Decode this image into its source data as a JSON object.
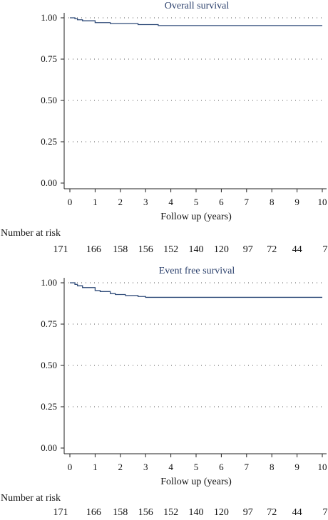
{
  "colors": {
    "curve": "#2e4a78",
    "axis": "#222222",
    "grid": "#555555",
    "title": "#2a3f6b"
  },
  "chart_data": [
    {
      "type": "line",
      "title": "Overall survival",
      "xlabel": "Follow up (years)",
      "ylabel": "",
      "xlim": [
        0,
        10
      ],
      "ylim": [
        0,
        1
      ],
      "x_ticks": [
        "0",
        "1",
        "2",
        "3",
        "4",
        "5",
        "6",
        "7",
        "8",
        "9",
        "10"
      ],
      "y_ticks": [
        "0.00",
        "0.25",
        "0.50",
        "0.75",
        "1.00"
      ],
      "grid": "horizontal dotted",
      "series": [
        {
          "x": [
            0,
            0.2,
            0.3,
            0.5,
            1.0,
            1.6,
            2.7,
            3.5,
            10
          ],
          "y": [
            1.0,
            0.994,
            0.988,
            0.982,
            0.971,
            0.965,
            0.959,
            0.953,
            0.953
          ]
        }
      ],
      "risk_table": {
        "header": "Number at risk",
        "values": [
          "171",
          "166",
          "158",
          "156",
          "152",
          "140",
          "120",
          "97",
          "72",
          "44",
          "7"
        ]
      }
    },
    {
      "type": "line",
      "title": "Event free survival",
      "xlabel": "Follow up (years)",
      "ylabel": "",
      "xlim": [
        0,
        10
      ],
      "ylim": [
        0,
        1
      ],
      "x_ticks": [
        "0",
        "1",
        "2",
        "3",
        "4",
        "5",
        "6",
        "7",
        "8",
        "9",
        "10"
      ],
      "y_ticks": [
        "0.00",
        "0.25",
        "0.50",
        "0.75",
        "1.00"
      ],
      "grid": "horizontal dotted",
      "series": [
        {
          "x": [
            0,
            0.2,
            0.3,
            0.5,
            1.0,
            1.2,
            1.6,
            1.8,
            2.2,
            2.7,
            3.0,
            10
          ],
          "y": [
            1.0,
            0.99,
            0.982,
            0.971,
            0.953,
            0.947,
            0.935,
            0.929,
            0.923,
            0.917,
            0.912,
            0.912
          ]
        }
      ],
      "risk_table": {
        "header": "Number at risk",
        "values": [
          "171",
          "166",
          "158",
          "156",
          "152",
          "140",
          "120",
          "97",
          "72",
          "44",
          "7"
        ]
      }
    }
  ]
}
